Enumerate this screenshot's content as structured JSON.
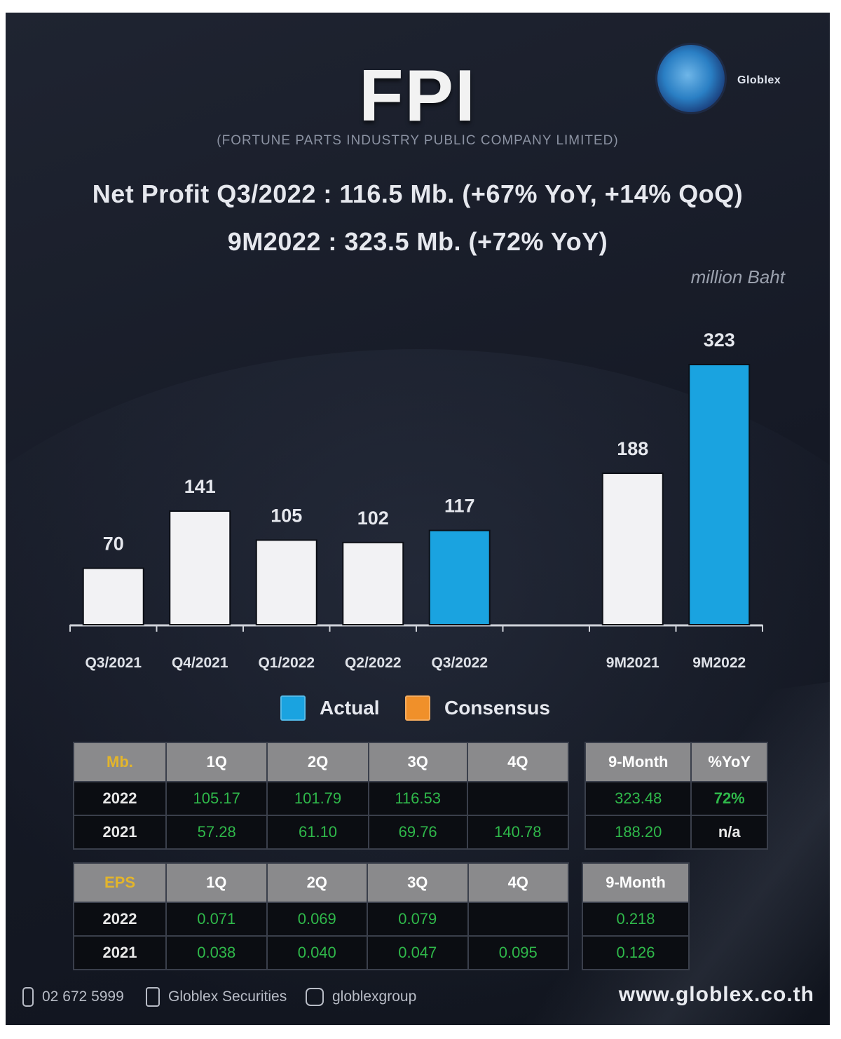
{
  "header": {
    "title": "FPI",
    "company": "(FORTUNE PARTS INDUSTRY PUBLIC COMPANY LIMITED)",
    "headline_1": "Net Profit  Q3/2022 : 116.5 Mb. (+67% YoY, +14% QoQ)",
    "headline_2": "9M2022 : 323.5 Mb. (+72% YoY)",
    "unit": "million Baht",
    "logo_icon": "globlex-globe-logo-icon"
  },
  "chart_data": {
    "type": "bar",
    "categories": [
      "Q3/2021",
      "Q4/2021",
      "Q1/2022",
      "Q2/2022",
      "Q3/2022",
      "",
      "9M2021",
      "9M2022"
    ],
    "values": [
      70,
      141,
      105,
      102,
      117,
      null,
      188,
      323
    ],
    "data_labels": [
      "70",
      "141",
      "105",
      "102",
      "117",
      "",
      "188",
      "323"
    ],
    "bar_kind": [
      "prior",
      "prior",
      "prior",
      "prior",
      "actual",
      "none",
      "prior",
      "actual"
    ],
    "ylabel": "million Baht",
    "ylim": [
      0,
      323
    ],
    "legend": [
      {
        "name": "Actual",
        "color": "#1aa3e0"
      },
      {
        "name": "Consensus",
        "color": "#f0902a"
      }
    ],
    "legend_position": "bottom",
    "colors": {
      "prior": "#f2f2f4",
      "actual": "#1aa3e0"
    },
    "grid": false
  },
  "profit_table": {
    "headers": [
      "Mb.",
      "1Q",
      "2Q",
      "3Q",
      "4Q"
    ],
    "rows": [
      {
        "year": "2022",
        "values": [
          "105.17",
          "101.79",
          "116.53",
          ""
        ]
      },
      {
        "year": "2021",
        "values": [
          "57.28",
          "61.10",
          "69.76",
          "140.78"
        ]
      }
    ],
    "side_headers": [
      "9-Month",
      "%YoY"
    ],
    "side_rows": [
      [
        "323.48",
        "72%"
      ],
      [
        "188.20",
        "n/a"
      ]
    ]
  },
  "eps_table": {
    "headers": [
      "EPS",
      "1Q",
      "2Q",
      "3Q",
      "4Q"
    ],
    "rows": [
      {
        "year": "2022",
        "values": [
          "0.071",
          "0.069",
          "0.079",
          ""
        ]
      },
      {
        "year": "2021",
        "values": [
          "0.038",
          "0.040",
          "0.047",
          "0.095"
        ]
      }
    ],
    "side_headers": [
      "9-Month"
    ],
    "side_rows": [
      [
        "0.218"
      ],
      [
        "0.126"
      ]
    ]
  },
  "footer": {
    "phone": "02 672 5999",
    "facebook": "Globlex Securities",
    "instagram": "globlexgroup",
    "website": "www.globlex.co.th"
  },
  "accent_colors": {
    "background": "#161a24",
    "actual": "#1aa3e0",
    "consensus": "#f0902a",
    "table_value": "#2fb84a"
  }
}
